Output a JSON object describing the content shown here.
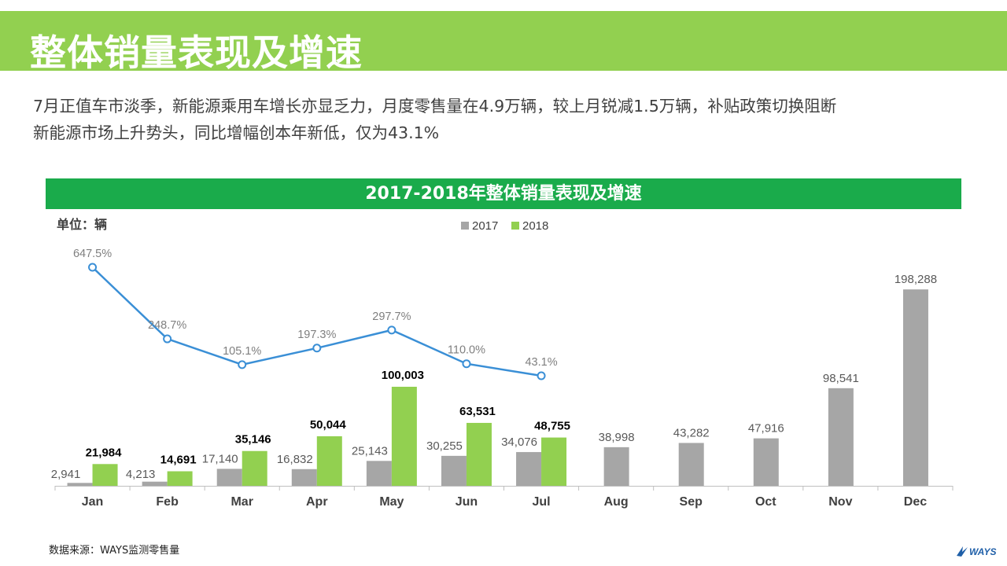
{
  "header": {
    "title": "整体销量表现及增速"
  },
  "summary": {
    "line1": "7月正值车市淡季，新能源乘用车增长亦显乏力，月度零售量在4.9万辆，较上月锐减1.5万辆，补贴政策切换阻断",
    "line2": "新能源市场上升势头，同比增幅创本年新低，仅为43.1%"
  },
  "chart_header": {
    "title": "2017-2018年整体销量表现及增速"
  },
  "unit": "单位：辆",
  "footnote": "数据来源：WAYS监测零售量",
  "logo_text": "WAYS",
  "colors": {
    "header_green": "#92d050",
    "chart_title_green": "#1aab4b",
    "bar_2017": "#a6a6a6",
    "bar_2018": "#92d050",
    "growth_line": "#3a8fd6"
  },
  "chart_data": {
    "type": "bar",
    "categories": [
      "Jan",
      "Feb",
      "Mar",
      "Apr",
      "May",
      "Jun",
      "Jul",
      "Aug",
      "Sep",
      "Oct",
      "Nov",
      "Dec"
    ],
    "series": [
      {
        "name": "2017",
        "values": [
          2941,
          4213,
          17140,
          16832,
          25143,
          30255,
          34076,
          38998,
          43282,
          47916,
          98541,
          198288
        ],
        "labels": [
          "2,941",
          "4,213",
          "17,140",
          "16,832",
          "25,143",
          "30,255",
          "34,076",
          "38,998",
          "43,282",
          "47,916",
          "98,541",
          "198,288"
        ]
      },
      {
        "name": "2018",
        "values": [
          21984,
          14691,
          35146,
          50044,
          100003,
          63531,
          48755,
          null,
          null,
          null,
          null,
          null
        ],
        "labels": [
          "21,984",
          "14,691",
          "35,146",
          "50,044",
          "100,003",
          "63,531",
          "48,755",
          "",
          "",
          "",
          "",
          ""
        ]
      }
    ],
    "growth_line": {
      "type": "line",
      "values": [
        647.5,
        248.7,
        105.1,
        197.3,
        297.7,
        110.0,
        43.1
      ],
      "labels": [
        "647.5%",
        "248.7%",
        "105.1%",
        "197.3%",
        "297.7%",
        "110.0%",
        "43.1%"
      ]
    },
    "legend": [
      "2017",
      "2018"
    ],
    "legend_position": "top-center",
    "grid": false
  }
}
